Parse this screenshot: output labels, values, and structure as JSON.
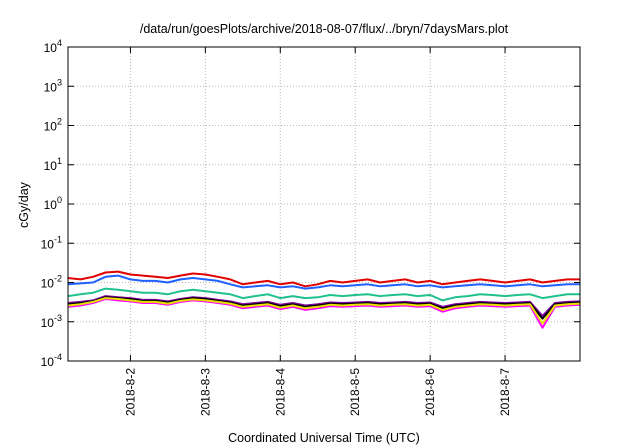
{
  "chart_data": {
    "type": "line",
    "title": "/data/run/goesPlots/archive/2018-08-07/flux/../bryn/7daysMars.plot",
    "xlabel": "Coordinated Universal Time (UTC)",
    "ylabel": "cGy/day",
    "y_scale": "log",
    "ylim": [
      0.0001,
      10000
    ],
    "y_ticks": [
      {
        "base": "10",
        "exp": "4"
      },
      {
        "base": "10",
        "exp": "3"
      },
      {
        "base": "10",
        "exp": "2"
      },
      {
        "base": "10",
        "exp": "1"
      },
      {
        "base": "10",
        "exp": "0"
      },
      {
        "base": "10",
        "exp": "-1"
      },
      {
        "base": "10",
        "exp": "-2"
      },
      {
        "base": "10",
        "exp": "-3"
      },
      {
        "base": "10",
        "exp": "-4"
      }
    ],
    "xlim": [
      "2018-08-01 04:00",
      "2018-08-08 00:00"
    ],
    "x_ticks": [
      "2018-8-2",
      "2018-8-3",
      "2018-8-4",
      "2018-8-5",
      "2018-8-6",
      "2018-8-7"
    ],
    "x_tick_dates": [
      "2018-08-02",
      "2018-08-03",
      "2018-08-04",
      "2018-08-05",
      "2018-08-06",
      "2018-08-07"
    ],
    "grid": true,
    "x": [
      "2018-08-01 04:00",
      "2018-08-01 08:00",
      "2018-08-01 12:00",
      "2018-08-01 16:00",
      "2018-08-01 20:00",
      "2018-08-02 00:00",
      "2018-08-02 04:00",
      "2018-08-02 08:00",
      "2018-08-02 12:00",
      "2018-08-02 16:00",
      "2018-08-02 20:00",
      "2018-08-03 00:00",
      "2018-08-03 04:00",
      "2018-08-03 08:00",
      "2018-08-03 12:00",
      "2018-08-03 16:00",
      "2018-08-03 20:00",
      "2018-08-04 00:00",
      "2018-08-04 04:00",
      "2018-08-04 08:00",
      "2018-08-04 12:00",
      "2018-08-04 16:00",
      "2018-08-04 20:00",
      "2018-08-05 00:00",
      "2018-08-05 04:00",
      "2018-08-05 08:00",
      "2018-08-05 12:00",
      "2018-08-05 16:00",
      "2018-08-05 20:00",
      "2018-08-06 00:00",
      "2018-08-06 04:00",
      "2018-08-06 08:00",
      "2018-08-06 12:00",
      "2018-08-06 16:00",
      "2018-08-06 20:00",
      "2018-08-07 00:00",
      "2018-08-07 04:00",
      "2018-08-07 08:00",
      "2018-08-07 12:00",
      "2018-08-07 16:00",
      "2018-08-07 20:00",
      "2018-08-08 00:00"
    ],
    "series": [
      {
        "color": "#e00000",
        "values": [
          0.013,
          0.012,
          0.014,
          0.018,
          0.019,
          0.016,
          0.015,
          0.014,
          0.013,
          0.015,
          0.017,
          0.016,
          0.014,
          0.012,
          0.009,
          0.01,
          0.011,
          0.009,
          0.01,
          0.008,
          0.009,
          0.011,
          0.01,
          0.011,
          0.012,
          0.01,
          0.011,
          0.012,
          0.01,
          0.011,
          0.009,
          0.01,
          0.011,
          0.012,
          0.011,
          0.01,
          0.011,
          0.012,
          0.01,
          0.011,
          0.012,
          0.012
        ]
      },
      {
        "color": "#2060ff",
        "values": [
          0.009,
          0.0095,
          0.01,
          0.014,
          0.015,
          0.012,
          0.011,
          0.011,
          0.01,
          0.012,
          0.013,
          0.012,
          0.011,
          0.009,
          0.0075,
          0.008,
          0.0085,
          0.0075,
          0.008,
          0.007,
          0.0075,
          0.0085,
          0.008,
          0.0085,
          0.009,
          0.008,
          0.0085,
          0.009,
          0.008,
          0.0085,
          0.0075,
          0.008,
          0.0085,
          0.009,
          0.0085,
          0.008,
          0.0085,
          0.009,
          0.008,
          0.0085,
          0.009,
          0.009
        ]
      },
      {
        "color": "#20c090",
        "values": [
          0.0045,
          0.005,
          0.0055,
          0.007,
          0.0065,
          0.006,
          0.0055,
          0.0055,
          0.005,
          0.006,
          0.0065,
          0.006,
          0.0055,
          0.005,
          0.004,
          0.0045,
          0.005,
          0.004,
          0.0045,
          0.004,
          0.0042,
          0.0048,
          0.0045,
          0.0048,
          0.005,
          0.0045,
          0.0048,
          0.005,
          0.0045,
          0.0048,
          0.0035,
          0.0042,
          0.0045,
          0.005,
          0.0048,
          0.0045,
          0.0048,
          0.005,
          0.004,
          0.0045,
          0.005,
          0.005
        ]
      },
      {
        "color": "#8000a0",
        "values": [
          0.003,
          0.0032,
          0.0035,
          0.0045,
          0.0042,
          0.004,
          0.0036,
          0.0036,
          0.0033,
          0.0038,
          0.0042,
          0.004,
          0.0036,
          0.0033,
          0.0028,
          0.003,
          0.0032,
          0.0027,
          0.003,
          0.0026,
          0.0028,
          0.0031,
          0.003,
          0.0031,
          0.0032,
          0.003,
          0.0031,
          0.0032,
          0.003,
          0.0031,
          0.0024,
          0.0028,
          0.003,
          0.0032,
          0.0031,
          0.003,
          0.0031,
          0.0032,
          0.0014,
          0.003,
          0.0032,
          0.0033
        ]
      },
      {
        "color": "#000000",
        "values": [
          0.0028,
          0.003,
          0.0033,
          0.0042,
          0.004,
          0.0038,
          0.0034,
          0.0034,
          0.0031,
          0.0036,
          0.004,
          0.0038,
          0.0034,
          0.0031,
          0.0026,
          0.0028,
          0.003,
          0.0025,
          0.0028,
          0.0024,
          0.0026,
          0.0029,
          0.0028,
          0.0029,
          0.003,
          0.0028,
          0.0029,
          0.003,
          0.0028,
          0.0029,
          0.0022,
          0.0026,
          0.0028,
          0.003,
          0.0029,
          0.0028,
          0.0029,
          0.003,
          0.0012,
          0.0028,
          0.003,
          0.0031
        ]
      },
      {
        "color": "#ff00ff",
        "values": [
          0.0024,
          0.0026,
          0.003,
          0.0038,
          0.0035,
          0.0033,
          0.003,
          0.003,
          0.0027,
          0.0032,
          0.0035,
          0.0033,
          0.003,
          0.0027,
          0.0022,
          0.0024,
          0.0026,
          0.0021,
          0.0024,
          0.002,
          0.0022,
          0.0025,
          0.0024,
          0.0025,
          0.0026,
          0.0024,
          0.0025,
          0.0026,
          0.0024,
          0.0025,
          0.0018,
          0.0022,
          0.0024,
          0.0026,
          0.0025,
          0.0024,
          0.0025,
          0.0026,
          0.0007,
          0.0024,
          0.0026,
          0.0027
        ]
      },
      {
        "color": "#e8e000",
        "values": [
          0.0026,
          0.0028,
          0.0032,
          0.004,
          0.0038,
          0.0035,
          0.0032,
          0.0032,
          0.0029,
          0.0034,
          0.0037,
          0.0035,
          0.0032,
          0.0029,
          0.0024,
          0.0026,
          0.0028,
          0.0023,
          0.0026,
          0.0022,
          0.0024,
          0.0027,
          0.0026,
          0.0027,
          0.0028,
          0.0026,
          0.0027,
          0.0028,
          0.0026,
          0.0027,
          0.002,
          0.0024,
          0.0026,
          0.0028,
          0.0027,
          0.0026,
          0.0027,
          0.0028,
          0.0009,
          0.0026,
          0.0028,
          0.0029
        ]
      }
    ]
  }
}
